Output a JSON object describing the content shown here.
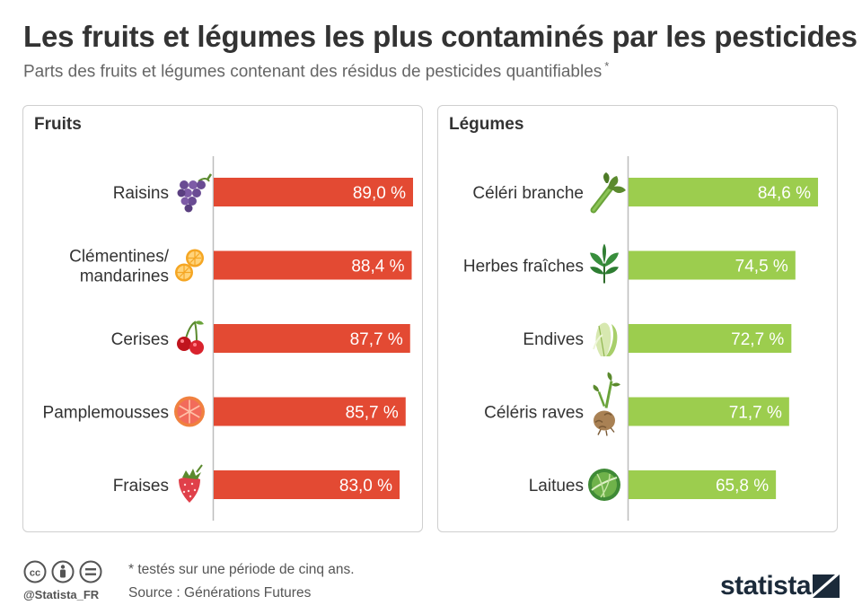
{
  "title": "Les fruits et légumes les plus contaminés par les pesticides",
  "subtitle": "Parts des fruits et légumes contenant des résidus de pesticides quantifiables",
  "subtitle_mark": "*",
  "colors": {
    "fruits": "#e34a33",
    "legumes": "#9ccd4e",
    "axis": "#bdbdbd"
  },
  "chart_data": [
    {
      "type": "bar",
      "orientation": "horizontal",
      "title": "Fruits",
      "unit": "%",
      "xlim": [
        0,
        89.0
      ],
      "categories": [
        "Raisins",
        "Clémentines/ mandarines",
        "Cerises",
        "Pamplemousses",
        "Fraises"
      ],
      "values": [
        89.0,
        88.4,
        87.7,
        85.7,
        83.0
      ],
      "value_labels": [
        "89,0 %",
        "88,4 %",
        "87,7 %",
        "85,7 %",
        "83,0 %"
      ],
      "icons": [
        "grapes-icon",
        "citrus-icon",
        "cherries-icon",
        "grapefruit-icon",
        "strawberry-icon"
      ]
    },
    {
      "type": "bar",
      "orientation": "horizontal",
      "title": "Légumes",
      "unit": "%",
      "xlim": [
        0,
        89.0
      ],
      "categories": [
        "Céléri branche",
        "Herbes fraîches",
        "Endives",
        "Céléris raves",
        "Laitues"
      ],
      "values": [
        84.6,
        74.5,
        72.7,
        71.7,
        65.8
      ],
      "value_labels": [
        "84,6 %",
        "74,5 %",
        "72,7 %",
        "71,7 %",
        "65,8 %"
      ],
      "icons": [
        "celery-icon",
        "herbs-icon",
        "endive-icon",
        "celeriac-icon",
        "lettuce-icon"
      ]
    }
  ],
  "footer": {
    "note": "* testés sur une période de cinq ans.",
    "source": "Source : Générations Futures",
    "handle": "@Statista_FR",
    "brand": "statista",
    "license_icons": [
      "cc-icon",
      "by-icon",
      "nd-icon"
    ]
  }
}
